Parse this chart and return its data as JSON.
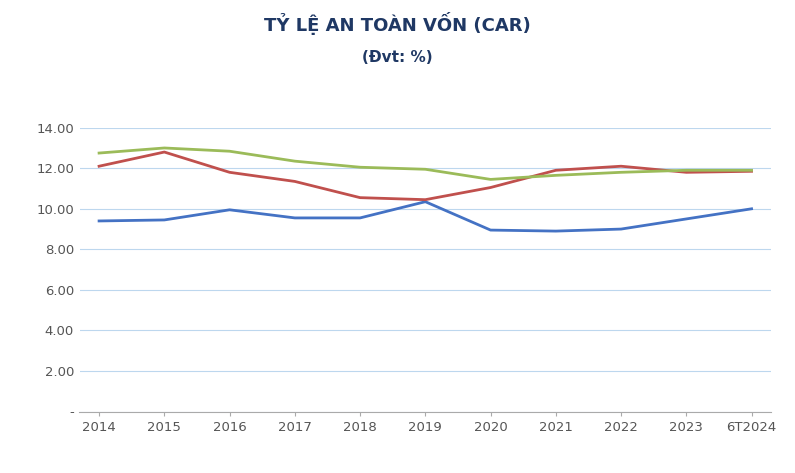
{
  "title_line1": "TỶ LỆ AN TOÀN VỐN (CAR)",
  "title_line2": "(Đvt: %)",
  "x_labels": [
    "2014",
    "2015",
    "2016",
    "2017",
    "2018",
    "2019",
    "2020",
    "2021",
    "2022",
    "2023",
    "6T2024"
  ],
  "nhtm_nha_nuoc": [
    9.4,
    9.45,
    9.95,
    9.55,
    9.55,
    10.35,
    8.95,
    8.9,
    9.0,
    9.5,
    10.0
  ],
  "nhtm_co_phan": [
    12.1,
    12.8,
    11.8,
    11.35,
    10.55,
    10.45,
    11.05,
    11.9,
    12.1,
    11.8,
    11.85
  ],
  "toan_he_thong": [
    12.75,
    13.0,
    12.84,
    12.35,
    12.05,
    11.95,
    11.45,
    11.65,
    11.8,
    11.9,
    11.9
  ],
  "color_nha_nuoc": "#4472C4",
  "color_co_phan": "#C0504D",
  "color_toan_he": "#9BBB59",
  "ylim": [
    0,
    14.0
  ],
  "yticks": [
    0,
    2.0,
    4.0,
    6.0,
    8.0,
    10.0,
    12.0,
    14.0
  ],
  "ytick_labels": [
    "-",
    "2.00",
    "4.00",
    "6.00",
    "8.00",
    "10.00",
    "12.00",
    "14.00"
  ],
  "background_color": "#ffffff",
  "grid_color": "#BDD7EE",
  "line_width": 2.0,
  "title_color": "#1F3864",
  "title_fontsize": 13,
  "subtitle_fontsize": 11,
  "axis_fontsize": 9.5,
  "legend_fontsize": 10
}
